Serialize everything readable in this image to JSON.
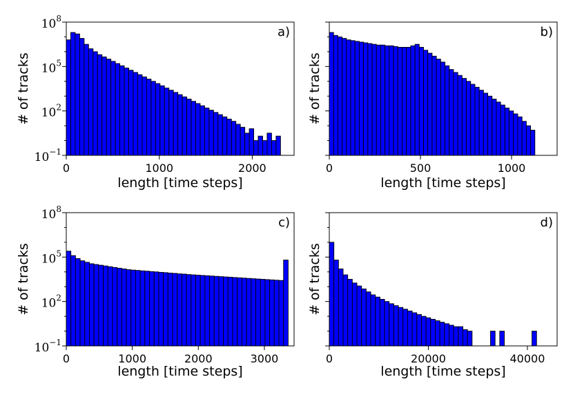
{
  "chart_data": [
    {
      "type": "bar",
      "panel_label": "a)",
      "xlabel": "length [time steps]",
      "ylabel": "# of tracks",
      "yscale": "log",
      "ylim_exp": [
        -1,
        8
      ],
      "xlim": [
        0,
        2450
      ],
      "ytick_labels": [
        {
          "base": "10",
          "exp": "8"
        },
        {
          "base": "10",
          "exp": "5"
        },
        {
          "base": "10",
          "exp": "2"
        },
        {
          "base": "10",
          "exp": "−1"
        }
      ],
      "xtick_labels": [
        "0",
        "1000",
        "2000"
      ],
      "xticks": [
        0,
        1000,
        2000
      ],
      "bar_color": "#0000ff",
      "edge_color": "#000000",
      "bin_start": 0,
      "bin_width": 48,
      "log10_counts": [
        6.8,
        7.3,
        7.2,
        6.9,
        6.5,
        6.2,
        6.0,
        5.8,
        5.65,
        5.5,
        5.35,
        5.2,
        5.05,
        4.9,
        4.75,
        4.6,
        4.45,
        4.3,
        4.15,
        4.0,
        3.85,
        3.7,
        3.55,
        3.4,
        3.25,
        3.1,
        2.95,
        2.8,
        2.65,
        2.5,
        2.35,
        2.2,
        2.05,
        1.9,
        1.75,
        1.6,
        1.45,
        1.3,
        1.1,
        0.9,
        0.5,
        0.8,
        0.0,
        0.3,
        0.0,
        0.5,
        0.0,
        0.3
      ]
    },
    {
      "type": "bar",
      "panel_label": "b)",
      "xlabel": "length [time steps]",
      "ylabel": "# of tracks",
      "yscale": "log",
      "ylim_exp": [
        -1,
        8
      ],
      "xlim": [
        0,
        1250
      ],
      "ytick_labels": [],
      "xtick_labels": [
        "0",
        "500",
        "1000"
      ],
      "xticks": [
        0,
        500,
        1000
      ],
      "bar_color": "#0000ff",
      "edge_color": "#000000",
      "bin_start": 0,
      "bin_width": 23.5,
      "log10_counts": [
        7.3,
        7.1,
        7.0,
        6.9,
        6.8,
        6.75,
        6.7,
        6.65,
        6.6,
        6.55,
        6.5,
        6.45,
        6.45,
        6.4,
        6.4,
        6.35,
        6.3,
        6.3,
        6.3,
        6.4,
        6.5,
        6.3,
        6.1,
        5.9,
        5.7,
        5.5,
        5.3,
        5.05,
        4.8,
        4.6,
        4.4,
        4.2,
        4.0,
        3.8,
        3.6,
        3.4,
        3.2,
        3.0,
        2.8,
        2.6,
        2.4,
        2.2,
        2.0,
        1.8,
        1.6,
        1.3,
        1.0,
        0.7
      ]
    },
    {
      "type": "bar",
      "panel_label": "c)",
      "xlabel": "length [time steps]",
      "ylabel": "# of tracks",
      "yscale": "log",
      "ylim_exp": [
        -1,
        8
      ],
      "xlim": [
        0,
        3450
      ],
      "ytick_labels": [
        {
          "base": "10",
          "exp": "8"
        },
        {
          "base": "10",
          "exp": "5"
        },
        {
          "base": "10",
          "exp": "2"
        },
        {
          "base": "10",
          "exp": "−1"
        }
      ],
      "xtick_labels": [
        "0",
        "1000",
        "2000",
        "3000"
      ],
      "xticks": [
        0,
        1000,
        2000,
        3000
      ],
      "bar_color": "#0000ff",
      "edge_color": "#000000",
      "bin_start": 0,
      "bin_width": 70,
      "log10_counts": [
        5.4,
        5.1,
        4.9,
        4.75,
        4.65,
        4.55,
        4.5,
        4.45,
        4.4,
        4.35,
        4.3,
        4.25,
        4.2,
        4.15,
        4.12,
        4.1,
        4.07,
        4.05,
        4.02,
        4.0,
        3.97,
        3.95,
        3.92,
        3.9,
        3.87,
        3.85,
        3.82,
        3.8,
        3.78,
        3.76,
        3.74,
        3.72,
        3.7,
        3.68,
        3.66,
        3.64,
        3.62,
        3.6,
        3.58,
        3.56,
        3.54,
        3.52,
        3.5,
        3.48,
        3.46,
        3.44,
        3.42,
        4.8
      ]
    },
    {
      "type": "bar",
      "panel_label": "d)",
      "xlabel": "length [time steps]",
      "ylabel": "# of tracks",
      "yscale": "log",
      "ylim_exp": [
        -1,
        8
      ],
      "xlim": [
        0,
        46000
      ],
      "ytick_labels": [],
      "xtick_labels": [
        "0",
        "20000",
        "40000"
      ],
      "xticks": [
        0,
        20000,
        40000
      ],
      "bar_color": "#0000ff",
      "edge_color": "#000000",
      "bin_start": 0,
      "bin_width": 930,
      "log10_counts": [
        6.0,
        4.8,
        4.2,
        3.8,
        3.5,
        3.25,
        3.05,
        2.85,
        2.65,
        2.45,
        2.3,
        2.15,
        2.0,
        1.85,
        1.72,
        1.6,
        1.48,
        1.36,
        1.24,
        1.12,
        1.0,
        0.9,
        0.8,
        0.7,
        0.6,
        0.5,
        0.4,
        0.3,
        0.3,
        0.1,
        0.0,
        null,
        null,
        null,
        null,
        0.0,
        null,
        0.0,
        null,
        null,
        null,
        null,
        null,
        null,
        0.0
      ]
    }
  ]
}
